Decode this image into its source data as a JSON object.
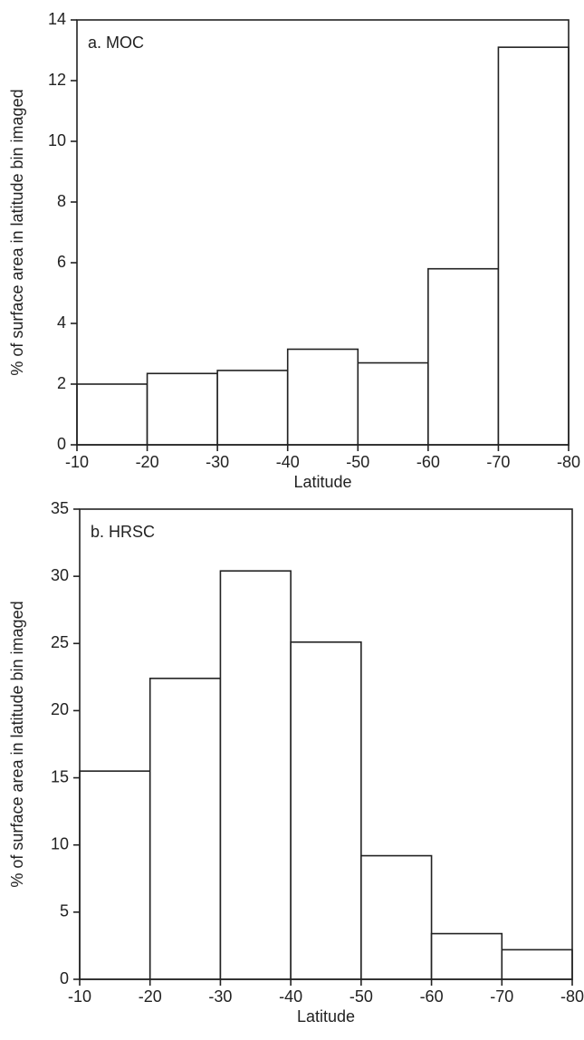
{
  "chart_data": [
    {
      "type": "histogram",
      "annotation": "a. MOC",
      "xlabel": "Latitude",
      "ylabel": "% of surface area in latitude bin imaged",
      "bins": [
        -10,
        -20,
        -30,
        -40,
        -50,
        -60,
        -70,
        -80
      ],
      "values": [
        2.0,
        2.35,
        2.45,
        3.15,
        2.7,
        5.8,
        13.1
      ],
      "color": "#ffffff",
      "xlim": [
        -10,
        -80
      ],
      "xticks": [
        -10,
        -20,
        -30,
        -40,
        -50,
        -60,
        -70,
        -80
      ],
      "ylim": [
        0,
        14
      ],
      "yticks": [
        0,
        2,
        4,
        6,
        8,
        10,
        12,
        14
      ]
    },
    {
      "type": "histogram",
      "annotation": "b. HRSC",
      "xlabel": "Latitude",
      "ylabel": "% of surface area in latitude bin imaged",
      "bins": [
        -10,
        -20,
        -30,
        -40,
        -50,
        -60,
        -70,
        -80
      ],
      "values": [
        15.5,
        22.4,
        30.4,
        25.1,
        9.2,
        3.4,
        2.2
      ],
      "color": "#ffffff",
      "xlim": [
        -10,
        -80
      ],
      "xticks": [
        -10,
        -20,
        -30,
        -40,
        -50,
        -60,
        -70,
        -80
      ],
      "ylim": [
        0,
        35
      ],
      "yticks": [
        0,
        5,
        10,
        15,
        20,
        25,
        30,
        35
      ]
    }
  ]
}
